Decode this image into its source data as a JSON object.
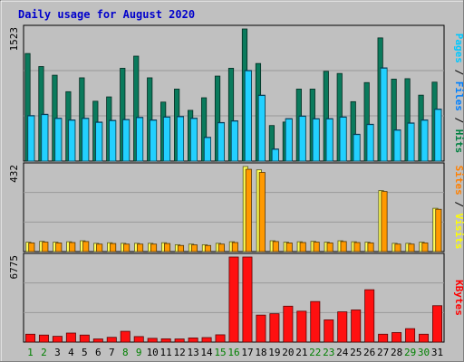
{
  "chart_data": {
    "type": "bar",
    "title": "Daily usage for August 2020",
    "categories": [
      "1",
      "2",
      "3",
      "4",
      "5",
      "6",
      "7",
      "8",
      "9",
      "10",
      "11",
      "12",
      "13",
      "14",
      "15",
      "16",
      "17",
      "18",
      "19",
      "20",
      "21",
      "22",
      "23",
      "24",
      "25",
      "26",
      "27",
      "28",
      "29",
      "30",
      "31"
    ],
    "weekend_days": [
      "1",
      "2",
      "8",
      "9",
      "15",
      "16",
      "22",
      "23",
      "29",
      "30"
    ],
    "panels": [
      {
        "id": "pages-files-hits",
        "y_max_label": "1523",
        "ylim": [
          0,
          1523
        ],
        "right_label_parts": [
          {
            "text": "Pages",
            "color": "#00c8ff"
          },
          {
            "text": " / ",
            "color": "#000000"
          },
          {
            "text": "Files",
            "color": "#0080ff"
          },
          {
            "text": " / ",
            "color": "#000000"
          },
          {
            "text": "Hits",
            "color": "#008040"
          }
        ],
        "series": [
          {
            "name": "Hits",
            "color": "#0a7a5c",
            "values": [
              1240,
              1090,
              990,
              800,
              960,
              690,
              740,
              1070,
              1210,
              960,
              680,
              830,
              585,
              730,
              980,
              1070,
              1523,
              1125,
              410,
              450,
              830,
              830,
              1035,
              1010,
              685,
              905,
              1420,
              945,
              950,
              760,
              910
            ]
          },
          {
            "name": "Files",
            "color": "#0080ff",
            "values": [
              525,
              540,
              495,
              475,
              495,
              450,
              470,
              480,
              505,
              475,
              510,
              515,
              495,
              275,
              445,
              465,
              1045,
              760,
              140,
              490,
              520,
              490,
              490,
              510,
              310,
              425,
              1075,
              360,
              440,
              475,
              600
            ]
          },
          {
            "name": "Pages",
            "color": "#22d0ff",
            "values": [
              520,
              535,
              490,
              470,
              490,
              445,
              465,
              475,
              500,
              470,
              505,
              510,
              490,
              270,
              440,
              460,
              1040,
              755,
              135,
              485,
              515,
              485,
              485,
              505,
              305,
              420,
              1070,
              355,
              435,
              470,
              595
            ]
          }
        ]
      },
      {
        "id": "sites-visits",
        "y_max_label": "432",
        "ylim": [
          0,
          432
        ],
        "right_label_parts": [
          {
            "text": "Sites",
            "color": "#ff8000"
          },
          {
            "text": " / ",
            "color": "#000000"
          },
          {
            "text": "Visits",
            "color": "#ffff00"
          }
        ],
        "series": [
          {
            "name": "Visits",
            "color": "#ffff55",
            "values": [
              48,
              52,
              48,
              50,
              55,
              42,
              45,
              42,
              42,
              42,
              45,
              35,
              38,
              35,
              42,
              50,
              432,
              415,
              55,
              48,
              50,
              52,
              48,
              55,
              50,
              48,
              310,
              42,
              42,
              48,
              220
            ]
          },
          {
            "name": "Sites",
            "color": "#ff9900",
            "values": [
              44,
              48,
              44,
              46,
              51,
              38,
              41,
              38,
              38,
              38,
              41,
              31,
              34,
              31,
              38,
              46,
              418,
              402,
              51,
              44,
              46,
              48,
              44,
              51,
              46,
              44,
              305,
              38,
              38,
              44,
              215
            ]
          }
        ]
      },
      {
        "id": "kbytes",
        "y_max_label": "6775",
        "ylim": [
          0,
          6775
        ],
        "right_label_parts": [
          {
            "text": "KBytes",
            "color": "#ff0000"
          }
        ],
        "series": [
          {
            "name": "KBytes",
            "color": "#ff1010",
            "values": [
              630,
              560,
              460,
              720,
              560,
              250,
              380,
              860,
              440,
              300,
              260,
              250,
              330,
              360,
              580,
              6775,
              6775,
              2150,
              2260,
              2860,
              2460,
              3230,
              1770,
              2410,
              2560,
              4170,
              630,
              760,
              1070,
              630,
              2900
            ]
          }
        ]
      }
    ]
  }
}
